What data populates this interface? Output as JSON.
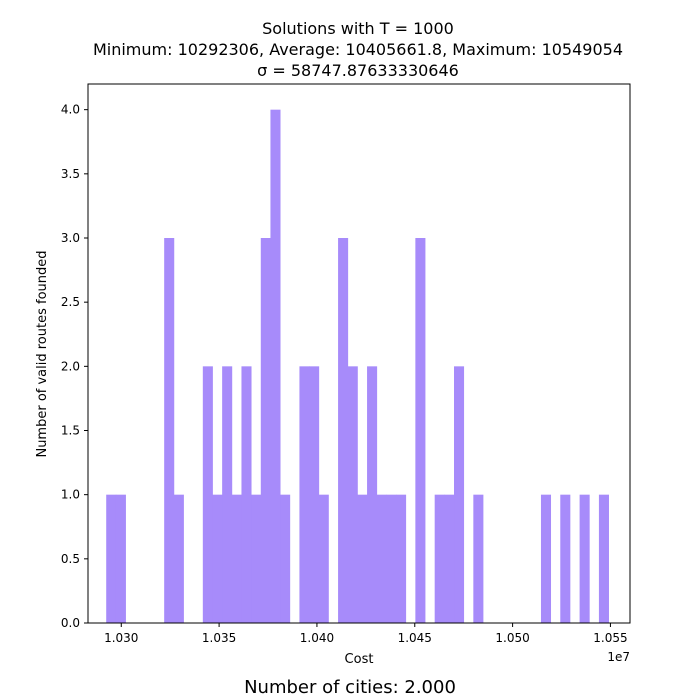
{
  "chart_data": {
    "type": "bar",
    "title_lines": [
      "Solutions with T = 1000",
      "Minimum: 10292306, Average: 10405661.8, Maximum: 10549054",
      "σ = 58747.87633330646"
    ],
    "xlabel": "Cost",
    "ylabel": "Number of valid routes founded",
    "x_offset_label": "1e7",
    "footer": "Number of cities: 2.000",
    "xlim": [
      1.0283,
      1.056
    ],
    "ylim": [
      0,
      4.2
    ],
    "x_ticks": [
      1.03,
      1.035,
      1.04,
      1.045,
      1.05,
      1.055
    ],
    "x_tick_labels": [
      "1.030",
      "1.035",
      "1.040",
      "1.045",
      "1.050",
      "1.055"
    ],
    "y_ticks": [
      0.0,
      0.5,
      1.0,
      1.5,
      2.0,
      2.5,
      3.0,
      3.5,
      4.0
    ],
    "y_tick_labels": [
      "0.0",
      "0.5",
      "1.0",
      "1.5",
      "2.0",
      "2.5",
      "3.0",
      "3.5",
      "4.0"
    ],
    "bar_color": "#a78bfa",
    "bins": {
      "start": 1.0292306,
      "end": 1.0549054,
      "count": 52,
      "values": [
        1,
        1,
        0,
        0,
        0,
        0,
        3,
        1,
        0,
        0,
        2,
        1,
        2,
        1,
        2,
        1,
        3,
        4,
        1,
        0,
        2,
        2,
        1,
        0,
        3,
        2,
        1,
        2,
        1,
        1,
        1,
        0,
        3,
        0,
        1,
        1,
        2,
        0,
        1,
        0,
        0,
        0,
        0,
        0,
        0,
        1,
        0,
        1,
        0,
        1,
        0,
        1
      ]
    }
  }
}
